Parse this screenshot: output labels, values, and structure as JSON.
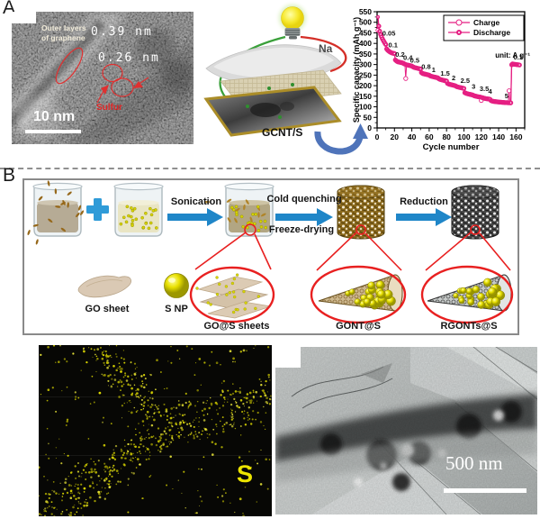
{
  "panel_a": {
    "label": "A",
    "hrtem": {
      "annotation": "Outer layers of graphene",
      "spacing_1": "0.39 nm",
      "spacing_2": "0.26 nm",
      "sulfur": "Sulfur",
      "scale_bar": "10 nm"
    },
    "cell": {
      "anode": "Na",
      "cathode": "GCNT/S"
    }
  },
  "chart_data": {
    "type": "line",
    "title": "",
    "xlabel": "Cycle number",
    "ylabel": "Specific capacity (mAh g⁻¹)",
    "xlim": [
      0,
      170
    ],
    "ylim": [
      0,
      550
    ],
    "xticks": [
      0,
      20,
      40,
      60,
      80,
      100,
      120,
      140,
      160
    ],
    "yticks": [
      0,
      50,
      100,
      150,
      200,
      250,
      300,
      350,
      400,
      450,
      500,
      550
    ],
    "grid": false,
    "legend_position": "top-right",
    "legend": [
      {
        "name": "Charge",
        "marker": "open"
      },
      {
        "name": "Discharge",
        "marker": "filled"
      }
    ],
    "annotation": "unit: A g⁻¹",
    "color": "#e51f82",
    "rate_steps": [
      {
        "rate": "0.05",
        "start": 1,
        "discharge": [
          525,
          482,
          458,
          443,
          432,
          423,
          415,
          408,
          401,
          395
        ]
      },
      {
        "rate": "0.1",
        "start": 11,
        "discharge": [
          374,
          369,
          365,
          362,
          359,
          357,
          355,
          354,
          353,
          352
        ]
      },
      {
        "rate": "0.2",
        "start": 21,
        "discharge": [
          322,
          318,
          315,
          313,
          312,
          311,
          310,
          309,
          308,
          307
        ]
      },
      {
        "rate": "0.4",
        "start": 31,
        "discharge": [
          304,
          302,
          300,
          299,
          298,
          297,
          296,
          295,
          294,
          293
        ]
      },
      {
        "rate": "0.5",
        "start": 41,
        "discharge": [
          290,
          288,
          286,
          285,
          284,
          283,
          282,
          281,
          280,
          279
        ]
      },
      {
        "rate": "0.8",
        "start": 51,
        "discharge": [
          262,
          259,
          257,
          256,
          255,
          254,
          253,
          252,
          251,
          250
        ]
      },
      {
        "rate": "1",
        "start": 61,
        "discharge": [
          247,
          245,
          244,
          243,
          242,
          241,
          240,
          239,
          238,
          237
        ]
      },
      {
        "rate": "1.5",
        "start": 71,
        "discharge": [
          233,
          231,
          229,
          228,
          227,
          226,
          225,
          224,
          223,
          222
        ]
      },
      {
        "rate": "2",
        "start": 81,
        "discharge": [
          211,
          209,
          207,
          206,
          205,
          204,
          203,
          202,
          201,
          200
        ]
      },
      {
        "rate": "2.5",
        "start": 91,
        "discharge": [
          197,
          195,
          194,
          193,
          192,
          191,
          190,
          189,
          188,
          187
        ]
      },
      {
        "rate": "3",
        "start": 101,
        "discharge": [
          167,
          165,
          163,
          162,
          161,
          160,
          159,
          158,
          157,
          156
        ]
      },
      {
        "rate": "3.5",
        "start": 111,
        "discharge": [
          154,
          152,
          151,
          150,
          149,
          148,
          147,
          147,
          146,
          146
        ]
      },
      {
        "rate": "4",
        "start": 121,
        "discharge": [
          144,
          142,
          141,
          140,
          139,
          138,
          138,
          137,
          137,
          136
        ]
      },
      {
        "rate": "5",
        "start": 131,
        "discharge": [
          130,
          128,
          127,
          126,
          125,
          125,
          124,
          124,
          123,
          123,
          122,
          122,
          122,
          121,
          121,
          121,
          120,
          120,
          120,
          120,
          119,
          119,
          119,
          119
        ]
      },
      {
        "rate": "0.1",
        "start": 155,
        "discharge": [
          299,
          303,
          302,
          301,
          301,
          300,
          300,
          299,
          299,
          298
        ]
      }
    ],
    "charge_overrides": [
      [
        1,
        462
      ],
      [
        33,
        234
      ],
      [
        120,
        130
      ],
      [
        152,
        176
      ]
    ],
    "rate_labels": [
      {
        "text": "0.05",
        "x": 6,
        "y": 436
      },
      {
        "text": "0.1",
        "x": 13,
        "y": 382
      },
      {
        "text": "0.2",
        "x": 21,
        "y": 336
      },
      {
        "text": "0.4",
        "x": 30,
        "y": 322
      },
      {
        "text": "0.5",
        "x": 38,
        "y": 309
      },
      {
        "text": "0.8",
        "x": 51,
        "y": 280
      },
      {
        "text": "1",
        "x": 63,
        "y": 264
      },
      {
        "text": "1.5",
        "x": 73,
        "y": 248
      },
      {
        "text": "2",
        "x": 86,
        "y": 226
      },
      {
        "text": "2.5",
        "x": 96,
        "y": 213
      },
      {
        "text": "3",
        "x": 109,
        "y": 186
      },
      {
        "text": "3.5",
        "x": 118,
        "y": 174
      },
      {
        "text": "4",
        "x": 128,
        "y": 163
      },
      {
        "text": "5",
        "x": 147,
        "y": 141
      },
      {
        "text": "0.1",
        "x": 157,
        "y": 323
      }
    ]
  },
  "panel_b": {
    "label": "B",
    "process": {
      "plus": "+",
      "step1": "Sonication",
      "step2a": "Cold quenching",
      "step2b": "Freeze-drying",
      "step3": "Reduction"
    },
    "items": {
      "go_sheet": "GO sheet",
      "s_np": "S NP",
      "gos": "GO@S sheets",
      "gont": "GONT@S",
      "rgont": "RGONTs@S"
    },
    "sulfur_map": {
      "label": "S"
    },
    "tem": {
      "scale_bar": "500 nm"
    }
  }
}
